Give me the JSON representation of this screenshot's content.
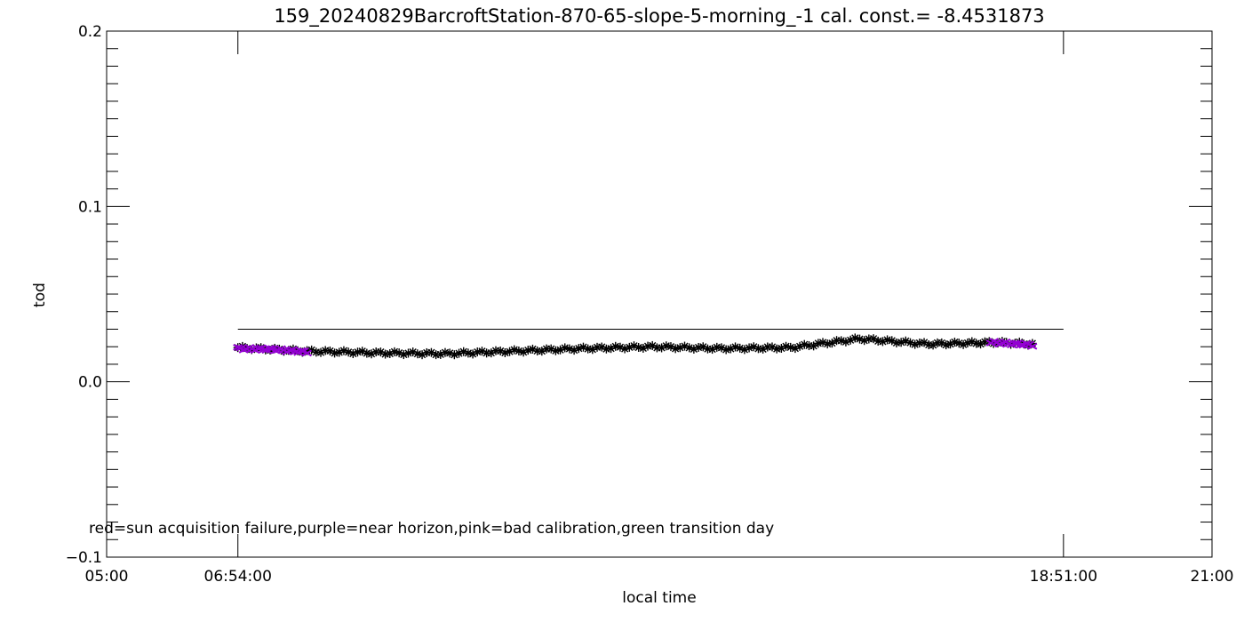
{
  "chart_data": {
    "type": "scatter",
    "title": "159_20240829BarcroftStation-870-65-slope-5-morning_-1 cal. const.= -8.4531873",
    "xlabel": "local time",
    "ylabel": "tod",
    "xlim": [
      "05:00",
      "21:00"
    ],
    "ylim": [
      -0.1,
      0.2
    ],
    "x_tick_labels": [
      "05:00",
      "06:54:00",
      "18:51:00",
      "21:00"
    ],
    "y_tick_labels": [
      "-0.1",
      "0.0",
      "0.1",
      "0.2"
    ],
    "grid": false,
    "reference_line": {
      "x_start": "06:54:00",
      "x_end": "18:51:00",
      "y": 0.03
    },
    "annotation": "red=sun acquisition failure,purple=near horizon,pink=bad calibration,green transition day",
    "colors": {
      "black": "#000000",
      "purple": "#9400d3"
    },
    "series": [
      {
        "color": "black",
        "marker": "asterisk",
        "x": [
          "06:54:00",
          "07:54",
          "08:54",
          "09:54",
          "10:54",
          "11:54",
          "12:54",
          "13:54",
          "14:54",
          "15:54",
          "16:54",
          "17:24",
          "17:54",
          "18:24"
        ],
        "y": [
          0.0195,
          0.0175,
          0.0165,
          0.016,
          0.0175,
          0.019,
          0.02,
          0.019,
          0.0195,
          0.0245,
          0.0215,
          0.022,
          0.0225,
          0.0215
        ]
      },
      {
        "color": "purple",
        "marker": "x",
        "x": [
          "06:54:00",
          "07:24",
          "07:54",
          "17:48",
          "18:24"
        ],
        "y": [
          0.019,
          0.0185,
          0.017,
          0.0225,
          0.021
        ]
      }
    ]
  }
}
